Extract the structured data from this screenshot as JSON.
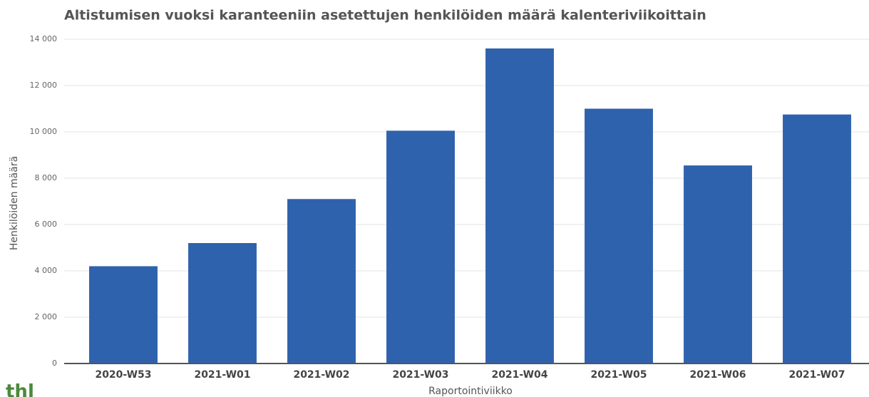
{
  "chart_data": {
    "type": "bar",
    "title": "Altistumisen vuoksi karanteeniin asetettujen henkilöiden määrä kalenteriviikoittain",
    "x_label": "Raportointiviikko",
    "y_label": "Henkilöiden määrä",
    "categories": [
      "2020-W53",
      "2021-W01",
      "2021-W02",
      "2021-W03",
      "2021-W04",
      "2021-W05",
      "2021-W06",
      "2021-W07"
    ],
    "values": [
      4200,
      5200,
      7100,
      10050,
      13600,
      11000,
      8550,
      10750
    ],
    "color": "#2f62ad",
    "ylim": [
      0,
      14000
    ],
    "yticks": [
      0,
      {
        "value": 2000,
        "label": "2 000"
      },
      {
        "value": 4000,
        "label": "4 000"
      },
      {
        "value": 6000,
        "label": "6 000"
      },
      {
        "value": 8000,
        "label": "8 000"
      },
      {
        "value": 10000,
        "label": "10 000"
      },
      {
        "value": 12000,
        "label": "12 000"
      },
      {
        "value": 14000,
        "label": "14 000"
      }
    ],
    "grid": true,
    "logo": "thl"
  }
}
